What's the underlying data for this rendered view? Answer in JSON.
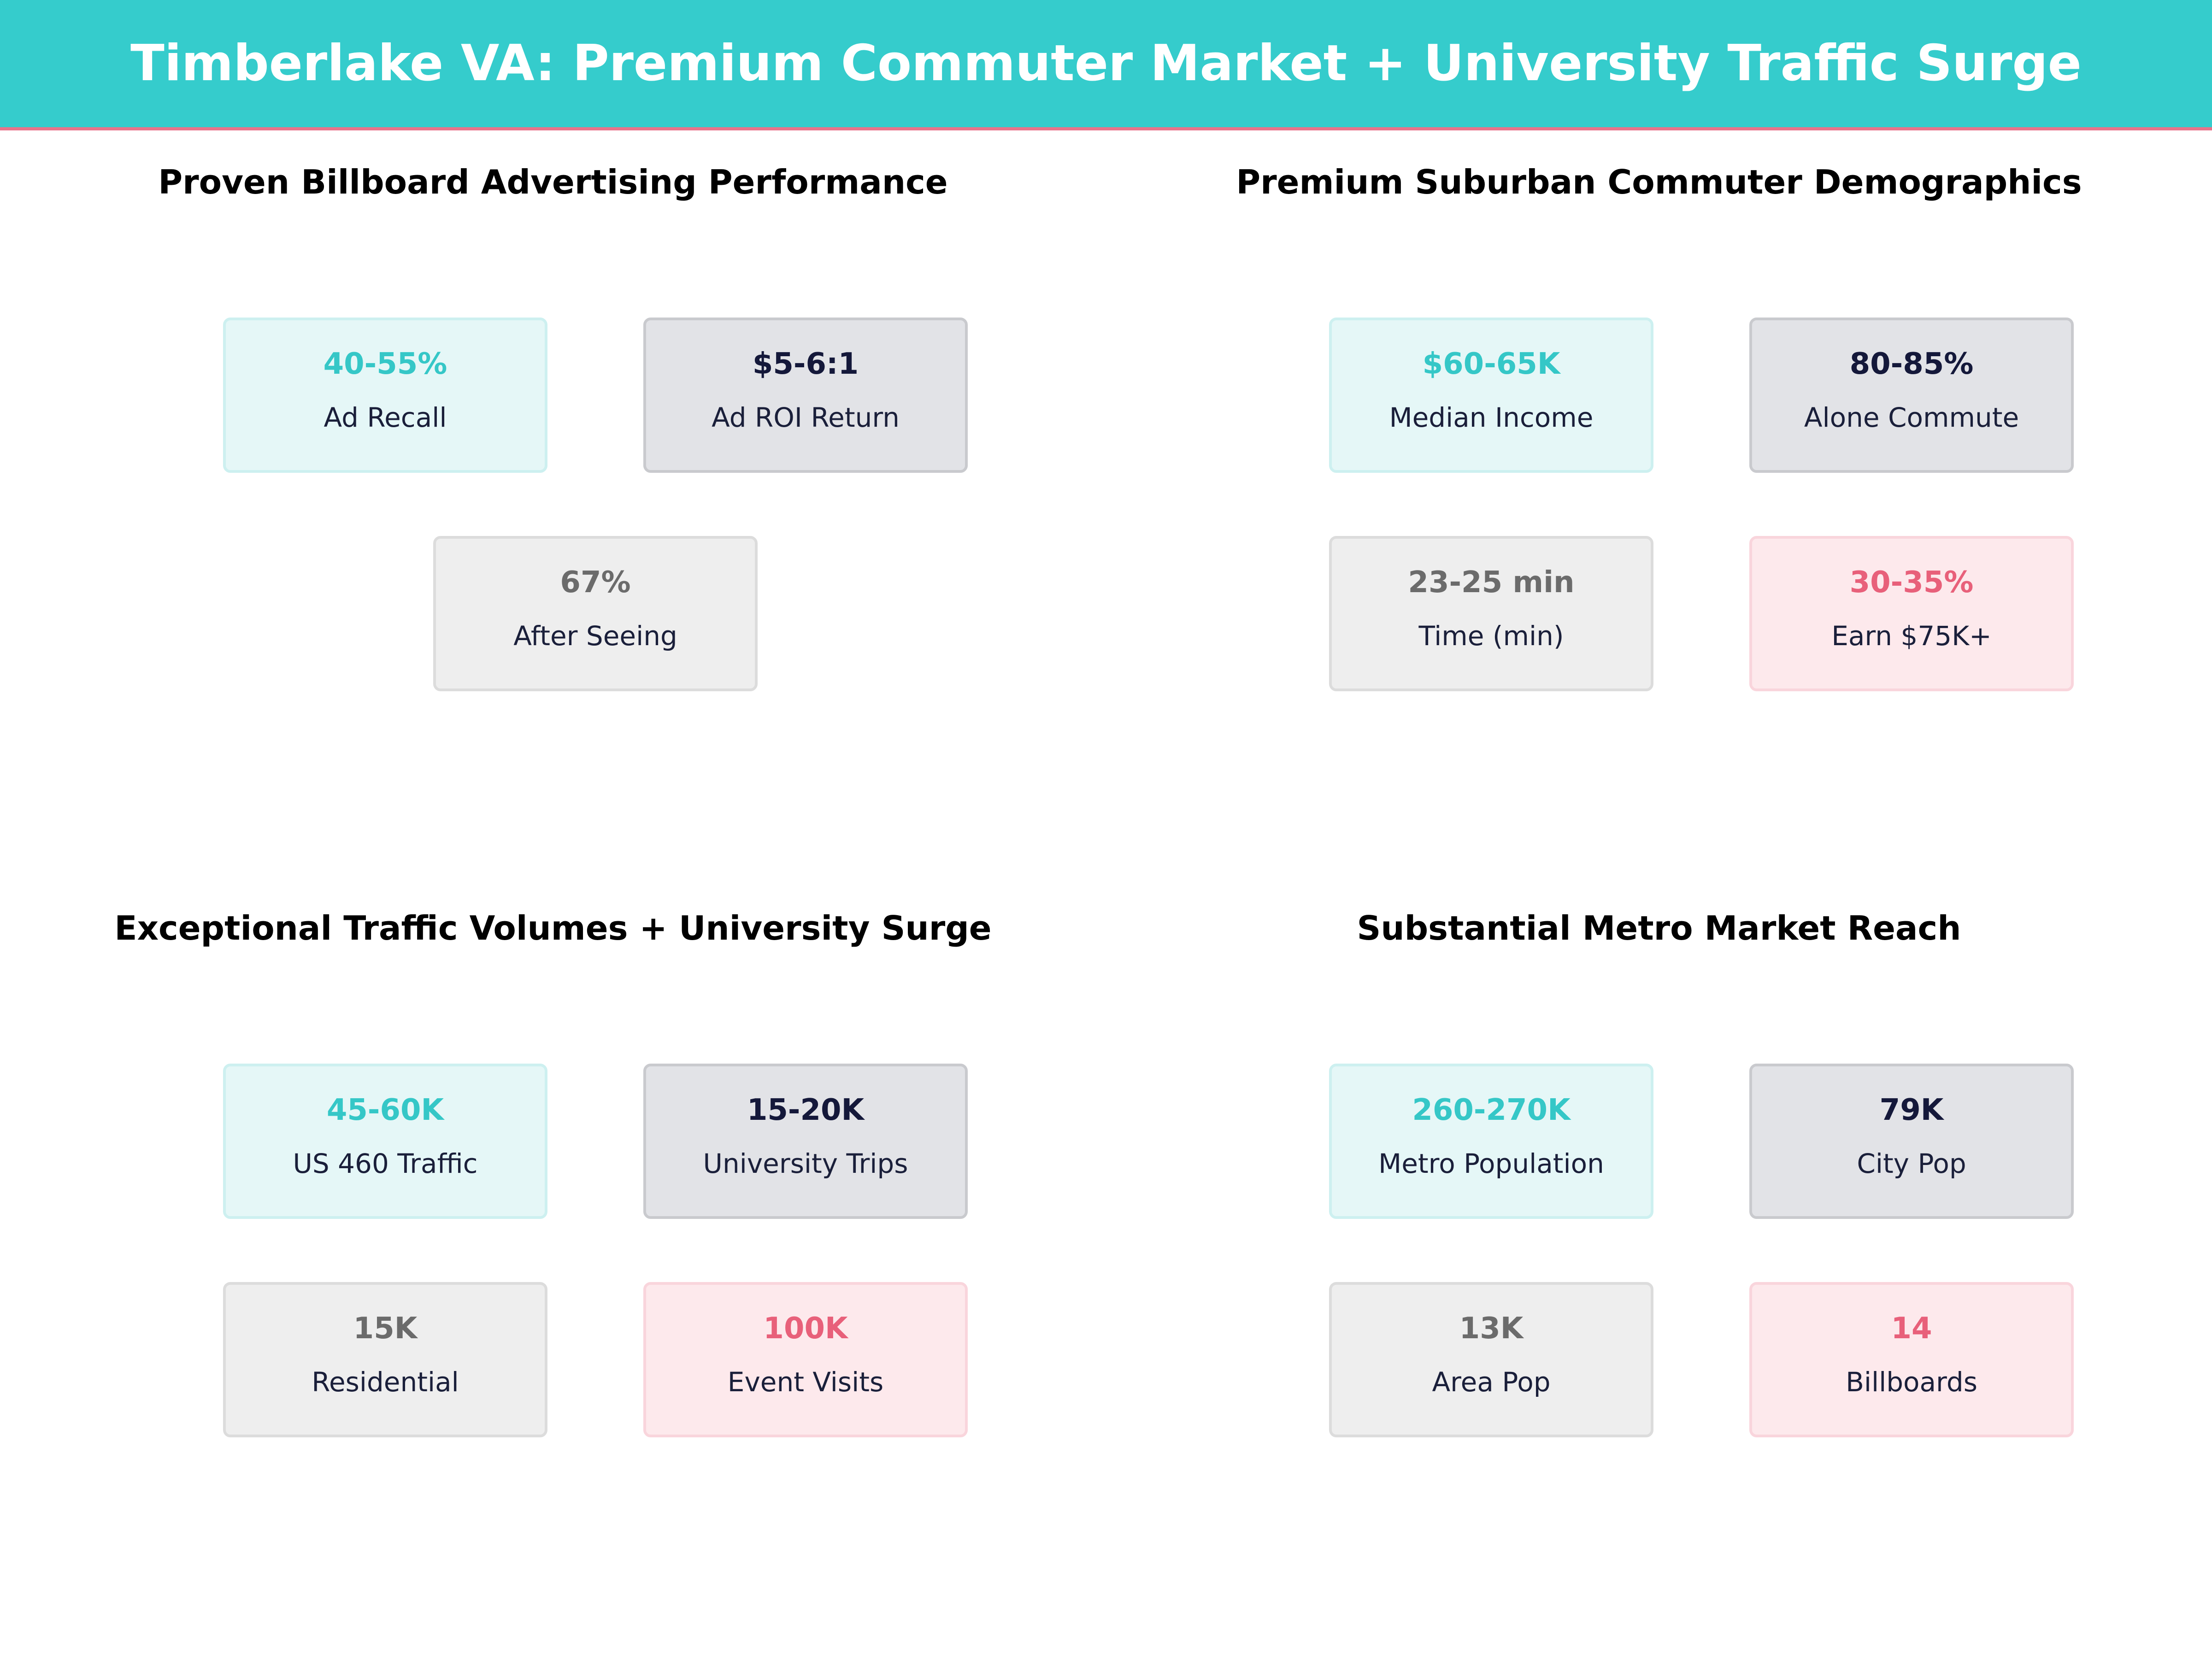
{
  "header": {
    "title": "Timberlake VA: Premium Commuter Market + University Traffic Surge"
  },
  "sections": [
    {
      "title": "Proven Billboard Advertising Performance",
      "cards": [
        {
          "value": "40-55%",
          "label": "Ad Recall"
        },
        {
          "value": "$5-6:1",
          "label": "Ad ROI Return"
        },
        {
          "value": "67%",
          "label": "After Seeing"
        }
      ]
    },
    {
      "title": "Premium Suburban Commuter Demographics",
      "cards": [
        {
          "value": "$60-65K",
          "label": "Median Income"
        },
        {
          "value": "80-85%",
          "label": "Alone Commute"
        },
        {
          "value": "23-25 min",
          "label": "Time (min)"
        },
        {
          "value": "30-35%",
          "label": "Earn $75K+"
        }
      ]
    },
    {
      "title": "Exceptional Traffic Volumes + University Surge",
      "cards": [
        {
          "value": "45-60K",
          "label": "US 460 Traffic"
        },
        {
          "value": "15-20K",
          "label": "University Trips"
        },
        {
          "value": "15K",
          "label": "Residential"
        },
        {
          "value": "100K",
          "label": "Event Visits"
        }
      ]
    },
    {
      "title": "Substantial Metro Market Reach",
      "cards": [
        {
          "value": "260-270K",
          "label": "Metro Population"
        },
        {
          "value": "79K",
          "label": "City Pop"
        },
        {
          "value": "13K",
          "label": "Area Pop"
        },
        {
          "value": "14",
          "label": "Billboards"
        }
      ]
    }
  ]
}
